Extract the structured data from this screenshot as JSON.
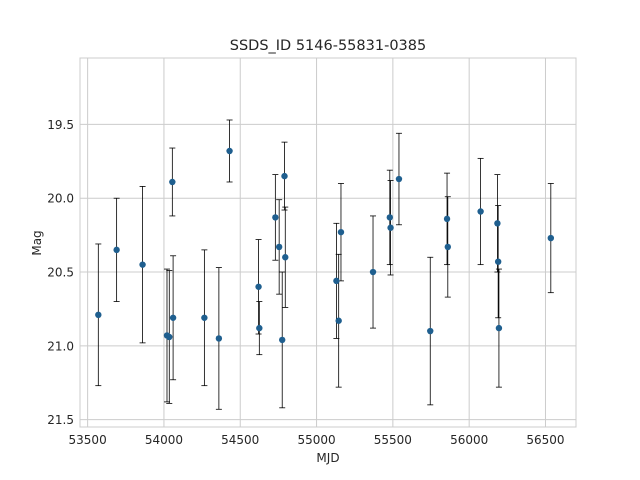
{
  "chart_data": {
    "type": "scatter",
    "title": "SSDS_ID 5146-55831-0385",
    "xlabel": "MJD",
    "ylabel": "Mag",
    "xlim": [
      53450,
      56700
    ],
    "ylim": [
      21.55,
      19.05
    ],
    "y_inverted": true,
    "grid": true,
    "xticks": [
      53500,
      54000,
      54500,
      55000,
      55500,
      56000,
      56500
    ],
    "yticks": [
      19.5,
      20.0,
      20.5,
      21.0,
      21.5
    ],
    "xtick_labels": [
      "53500",
      "54000",
      "54500",
      "55000",
      "55500",
      "56000",
      "56500"
    ],
    "ytick_labels": [
      "19.5",
      "20.0",
      "20.5",
      "21.0",
      "21.5"
    ],
    "colors": {
      "marker": "#1f5f8f",
      "errorbar": "#000000",
      "grid": "#cccccc",
      "frame": "#cccccc"
    },
    "points": [
      {
        "x": 53570,
        "y": 20.79,
        "err": 0.48
      },
      {
        "x": 53690,
        "y": 20.35,
        "err": 0.35
      },
      {
        "x": 53860,
        "y": 20.45,
        "err": 0.53
      },
      {
        "x": 54020,
        "y": 20.93,
        "err": 0.45
      },
      {
        "x": 54035,
        "y": 20.94,
        "err": 0.45
      },
      {
        "x": 54055,
        "y": 19.89,
        "err": 0.23
      },
      {
        "x": 54060,
        "y": 20.81,
        "err": 0.42
      },
      {
        "x": 54265,
        "y": 20.81,
        "err": 0.46
      },
      {
        "x": 54360,
        "y": 20.95,
        "err": 0.48
      },
      {
        "x": 54430,
        "y": 19.68,
        "err": 0.21
      },
      {
        "x": 54620,
        "y": 20.6,
        "err": 0.32
      },
      {
        "x": 54625,
        "y": 20.88,
        "err": 0.18
      },
      {
        "x": 54730,
        "y": 20.13,
        "err": 0.29
      },
      {
        "x": 54755,
        "y": 20.33,
        "err": 0.32
      },
      {
        "x": 54775,
        "y": 20.96,
        "err": 0.46
      },
      {
        "x": 54790,
        "y": 19.85,
        "err": 0.23
      },
      {
        "x": 54795,
        "y": 20.4,
        "err": 0.34
      },
      {
        "x": 55130,
        "y": 20.56,
        "err": 0.39
      },
      {
        "x": 55145,
        "y": 20.83,
        "err": 0.45
      },
      {
        "x": 55160,
        "y": 20.23,
        "err": 0.33
      },
      {
        "x": 55370,
        "y": 20.5,
        "err": 0.38
      },
      {
        "x": 55480,
        "y": 20.13,
        "err": 0.32
      },
      {
        "x": 55485,
        "y": 20.2,
        "err": 0.32
      },
      {
        "x": 55540,
        "y": 19.87,
        "err": 0.31
      },
      {
        "x": 55745,
        "y": 20.9,
        "err": 0.5
      },
      {
        "x": 55855,
        "y": 20.14,
        "err": 0.31
      },
      {
        "x": 55860,
        "y": 20.33,
        "err": 0.34
      },
      {
        "x": 56075,
        "y": 20.09,
        "err": 0.36
      },
      {
        "x": 56185,
        "y": 20.17,
        "err": 0.33
      },
      {
        "x": 56190,
        "y": 20.43,
        "err": 0.38
      },
      {
        "x": 56195,
        "y": 20.88,
        "err": 0.4
      },
      {
        "x": 56535,
        "y": 20.27,
        "err": 0.37
      }
    ]
  }
}
